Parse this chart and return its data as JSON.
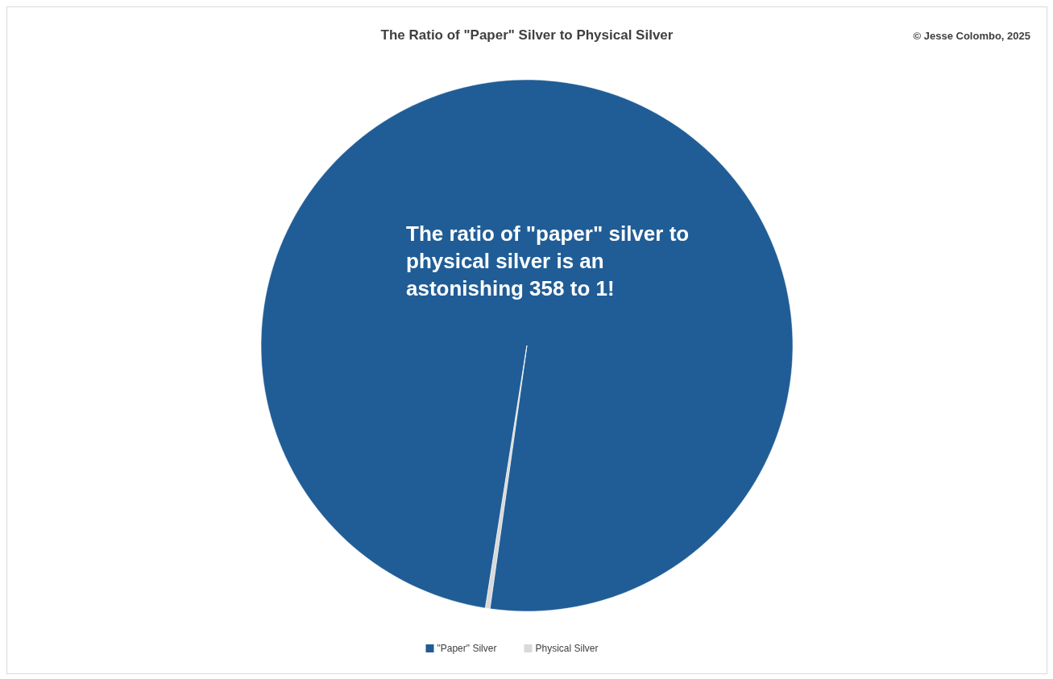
{
  "chart_data": {
    "type": "pie",
    "title": "The Ratio of \"Paper\" Silver to Physical Silver",
    "categories": [
      "\"Paper\" Silver",
      "Physical Silver"
    ],
    "values": [
      99.72,
      0.28
    ],
    "colors": [
      "#205d96",
      "#d9d9d9"
    ],
    "legend": "bottom",
    "annotations": [
      "The ratio of \"paper\" silver to physical silver is an astonishing 358 to 1!",
      "© Jesse Colombo, 2025"
    ]
  }
}
